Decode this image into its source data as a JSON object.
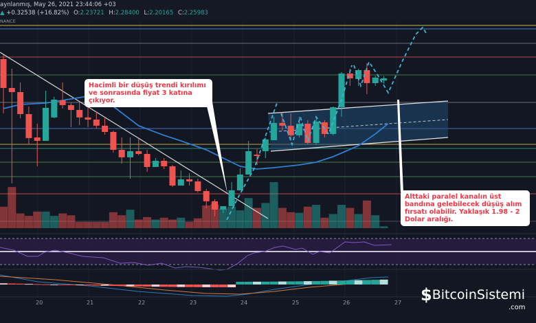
{
  "header": {
    "title_line": "aynlanmış, May 26, 2021 23:44:06 +03",
    "change": "+0.32538 (+16.82%)",
    "ohlc": {
      "o_label": "O:",
      "o": "2.23721",
      "h_label": "H:",
      "h": "2.28400",
      "l_label": "L:",
      "l": "2.20165",
      "c_label": "C:",
      "c": "2.25983"
    },
    "exchange": "NANCE"
  },
  "annotations": {
    "callout_1": "Hacimli bir düşüş trendi kırılımı ve sonrasında fiyat 3 katına çıkıyor.",
    "callout_2": "Alttaki paralel kanalın üst bandına gelebilecek düşüş alım fırsatı olabilir. Yaklaşık 1.98 - 2 Dolar aralığı."
  },
  "x_axis": {
    "labels": [
      "20",
      "21",
      "22",
      "23",
      "24",
      "25",
      "26",
      "27"
    ]
  },
  "watermark": {
    "brand": "BitcoinSistemi",
    "suffix": ".com"
  },
  "colors": {
    "up": "#26a69a",
    "down": "#ef5350",
    "ma": "#2e7fd6",
    "rsi": "#7e57c2",
    "background": "#131722"
  },
  "chart_data": {
    "type": "candlestick",
    "candles_ohlc": [
      [
        2.47,
        2.515,
        1.878,
        2.155
      ],
      [
        2.155,
        2.365,
        1.113,
        2.11
      ],
      [
        2.11,
        2.215,
        1.825,
        1.87
      ],
      [
        1.87,
        1.953,
        1.54,
        1.608
      ],
      [
        1.615,
        1.765,
        1.3,
        1.578
      ],
      [
        1.578,
        2.125,
        1.578,
        1.938
      ],
      [
        1.833,
        2.058,
        1.825,
        2.028
      ],
      [
        2.02,
        2.215,
        1.93,
        1.968
      ],
      [
        1.968,
        1.99,
        1.728,
        1.915
      ],
      [
        1.915,
        2.005,
        1.75,
        1.833
      ],
      [
        1.833,
        1.983,
        1.728,
        1.81
      ],
      [
        1.81,
        1.893,
        1.713,
        1.743
      ],
      [
        1.743,
        1.825,
        1.645,
        1.675
      ],
      [
        1.675,
        1.69,
        1.45,
        1.48
      ],
      [
        1.48,
        1.615,
        1.33,
        1.398
      ],
      [
        1.398,
        1.615,
        1.165,
        1.465
      ],
      [
        1.465,
        1.6,
        1.42,
        1.435
      ],
      [
        1.435,
        1.48,
        1.24,
        1.293
      ],
      [
        1.293,
        1.39,
        1.293,
        1.36
      ],
      [
        1.36,
        1.39,
        1.27,
        1.3
      ],
      [
        1.3,
        1.315,
        1.075,
        1.09
      ],
      [
        1.09,
        1.255,
        1.09,
        1.158
      ],
      [
        1.158,
        1.225,
        1.09,
        1.135
      ],
      [
        1.135,
        1.165,
        1.015,
        1.03
      ],
      [
        1.03,
        1.053,
        0.843,
        0.918
      ],
      [
        0.918,
        0.94,
        0.753,
        0.828
      ],
      [
        0.828,
        0.865,
        0.79,
        0.865
      ],
      [
        0.865,
        1.128,
        0.865,
        1.038
      ],
      [
        1.038,
        1.278,
        1.038,
        1.21
      ],
      [
        1.21,
        1.578,
        1.21,
        1.465
      ],
      [
        1.428,
        1.488,
        1.315,
        1.413
      ],
      [
        1.465,
        1.615,
        1.39,
        1.593
      ],
      [
        1.585,
        1.84,
        1.585,
        1.773
      ],
      [
        1.773,
        1.885,
        1.69,
        1.743
      ],
      [
        1.743,
        1.878,
        1.578,
        1.638
      ],
      [
        1.638,
        1.84,
        1.615,
        1.765
      ],
      [
        1.765,
        1.803,
        1.54,
        1.555
      ],
      [
        1.555,
        1.84,
        1.54,
        1.788
      ],
      [
        1.78,
        1.803,
        1.615,
        1.653
      ],
      [
        1.653,
        1.953,
        1.638,
        1.945
      ],
      [
        1.945,
        2.328,
        1.84,
        2.313
      ],
      [
        2.313,
        2.365,
        2.178,
        2.26
      ],
      [
        2.253,
        2.365,
        2.178,
        2.35
      ],
      [
        2.35,
        2.425,
        2.088,
        2.208
      ],
      [
        2.208,
        2.29,
        2.178,
        2.268
      ],
      [
        2.237,
        2.284,
        2.202,
        2.26
      ]
    ],
    "volume": [
      35,
      67,
      24,
      20,
      27,
      27,
      20,
      24,
      21,
      10,
      10,
      10,
      10,
      26,
      21,
      30,
      14,
      18,
      14,
      17,
      14,
      17,
      10,
      16,
      37,
      39,
      32,
      35,
      29,
      49,
      33,
      41,
      75,
      33,
      26,
      25,
      35,
      38,
      17,
      23,
      38,
      33,
      23,
      45,
      21,
      3
    ],
    "moving_average": [
      [
        0,
        1.93
      ],
      [
        2,
        1.975
      ],
      [
        5,
        1.99
      ],
      [
        8,
        2.035
      ],
      [
        10,
        2.065
      ],
      [
        11,
        2.058
      ],
      [
        13,
        1.953
      ],
      [
        16,
        1.743
      ],
      [
        19,
        1.638
      ],
      [
        21,
        1.578
      ],
      [
        24,
        1.48
      ],
      [
        26,
        1.39
      ],
      [
        28,
        1.3
      ],
      [
        30,
        1.27
      ],
      [
        32,
        1.285
      ],
      [
        35,
        1.315
      ],
      [
        37,
        1.345
      ],
      [
        39,
        1.405
      ],
      [
        42,
        1.525
      ],
      [
        44,
        1.653
      ],
      [
        45.5,
        1.765
      ]
    ]
  }
}
